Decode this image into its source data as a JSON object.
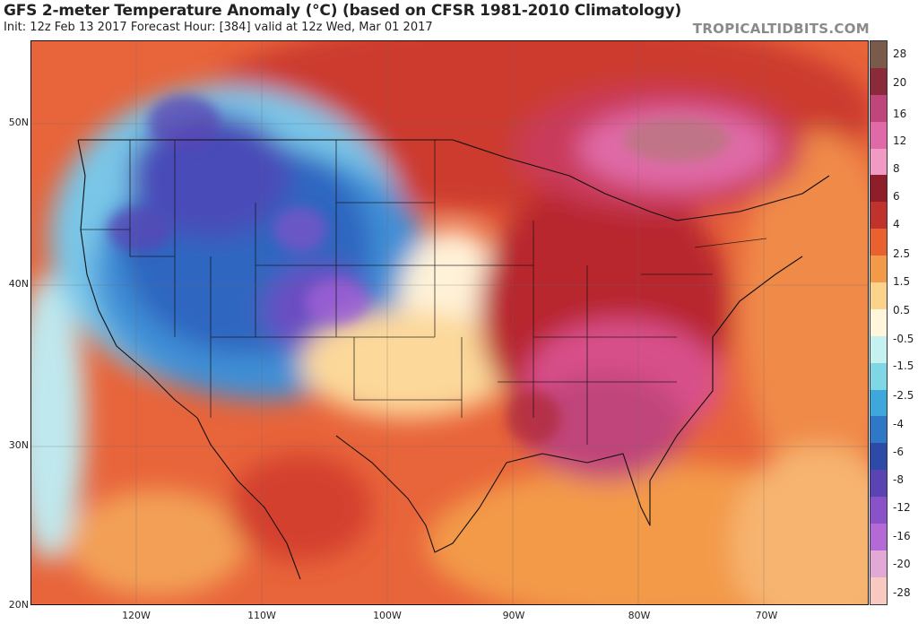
{
  "header": {
    "title": "GFS 2-meter Temperature Anomaly (°C) (based on CFSR 1981-2010 Climatology)",
    "subtitle": "Init: 12z Feb 13 2017   Forecast Hour: [384]   valid at 12z Wed, Mar 01 2017",
    "brand": "TROPICALTIDBITS.COM"
  },
  "map": {
    "lat_labels": [
      "50N",
      "40N",
      "30N",
      "20N"
    ],
    "lon_labels": [
      "120W",
      "110W",
      "100W",
      "90W",
      "80W",
      "70W"
    ]
  },
  "colorbar": {
    "labels": [
      "28",
      "20",
      "16",
      "12",
      "8",
      "6",
      "4",
      "2.5",
      "1.5",
      "0.5",
      "-0.5",
      "-1.5",
      "-2.5",
      "-4",
      "-6",
      "-8",
      "-12",
      "-16",
      "-20",
      "-28"
    ],
    "colors": [
      "#7a5a4a",
      "#8b2a3a",
      "#c0457a",
      "#e06aa8",
      "#f19ac4",
      "#8e1e2a",
      "#c0322c",
      "#e8612f",
      "#f39a4a",
      "#fbd38a",
      "#fff6dc",
      "#c6f1f1",
      "#7fd7e6",
      "#3ea8dc",
      "#2f78c8",
      "#2d4aa8",
      "#5a44b4",
      "#8a52c8",
      "#b46ad6",
      "#e2a8d6",
      "#f7c9c0"
    ]
  }
}
